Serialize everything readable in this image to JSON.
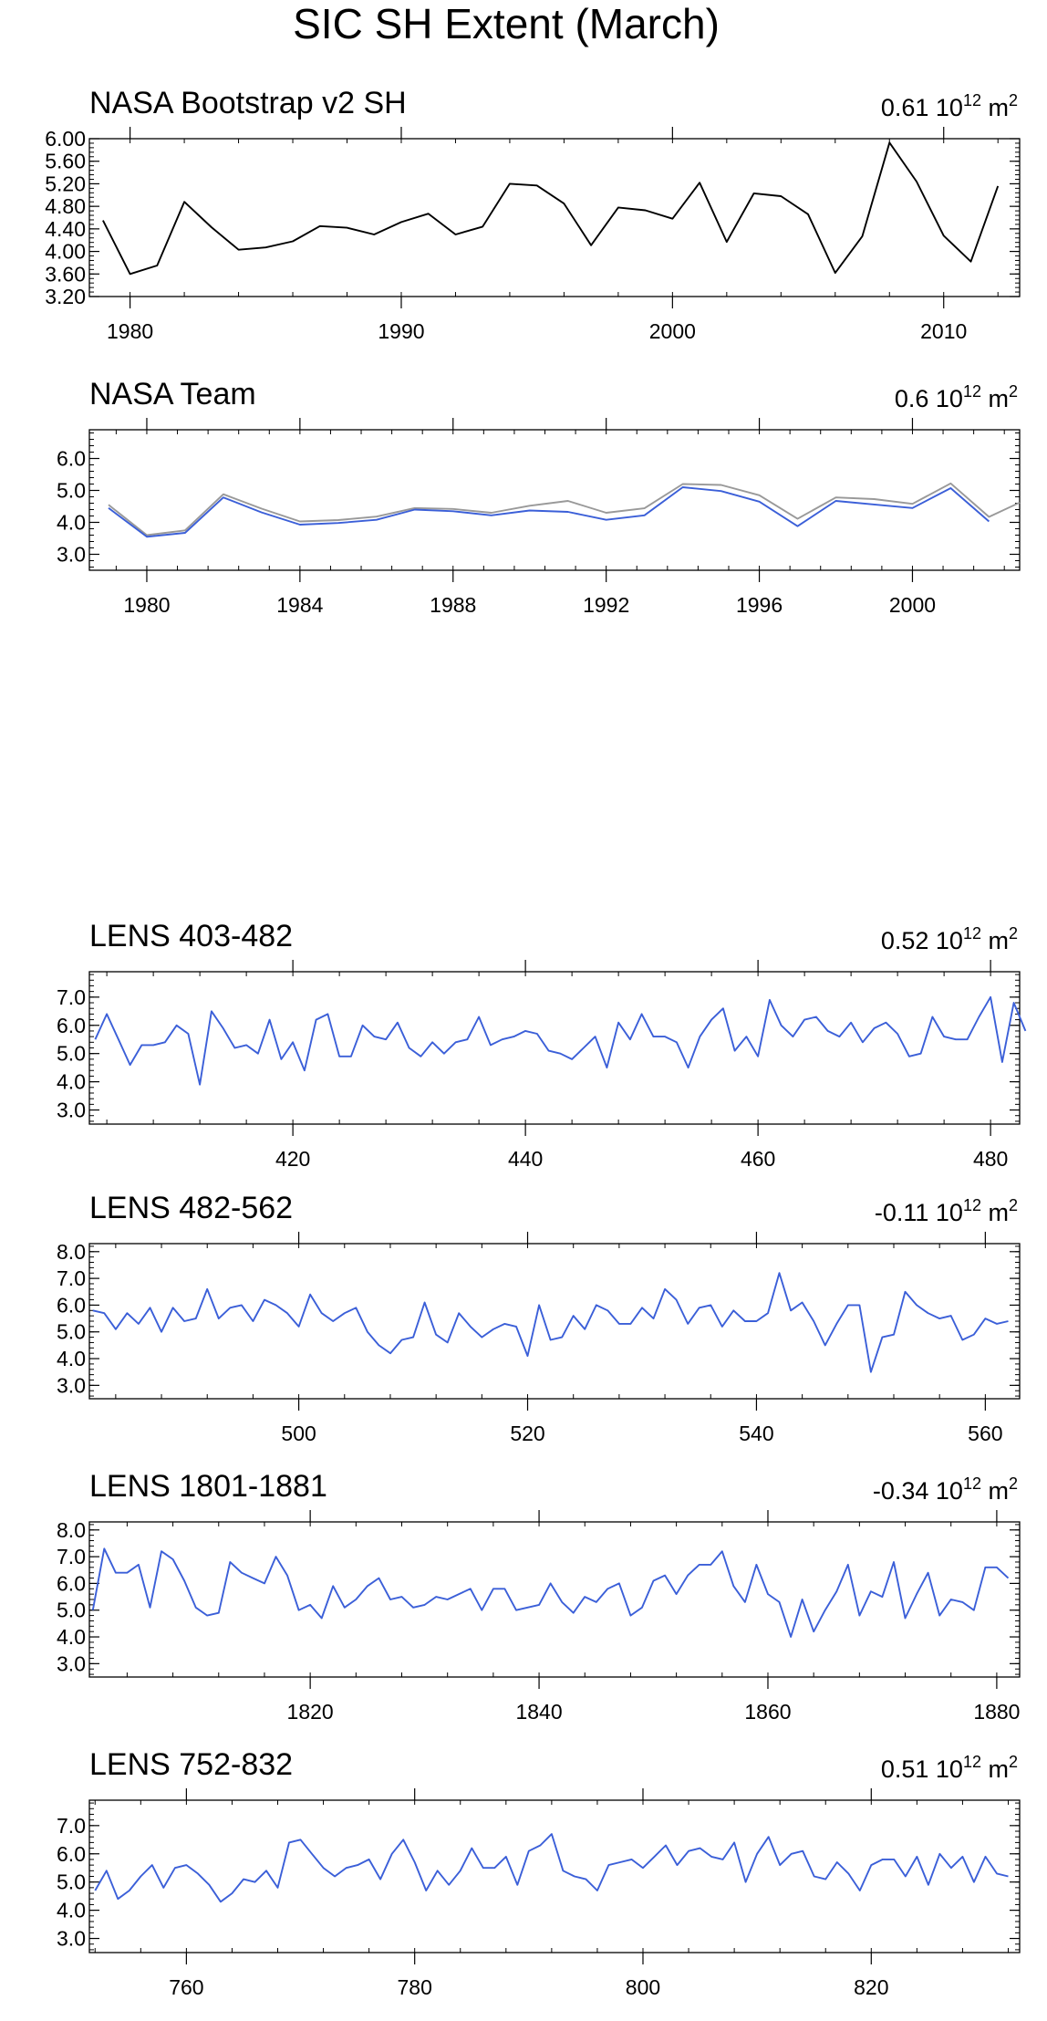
{
  "figure_title": "SIC SH Extent (March)",
  "chart_data": [
    {
      "type": "line",
      "title": "NASA Bootstrap v2 SH",
      "stat_value": "0.61",
      "stat_unit_base": "10",
      "stat_unit_exp": "12",
      "stat_unit_label": "m",
      "stat_unit_label_exp": "2",
      "xlim": [
        1978.5,
        2012.8
      ],
      "ylim": [
        3.2,
        6.0
      ],
      "xticks": [
        1980,
        1990,
        2000,
        2010
      ],
      "xtick_labels": [
        "1980",
        "1990",
        "2000",
        "2010"
      ],
      "yticks": [
        3.2,
        3.6,
        4.0,
        4.4,
        4.8,
        5.2,
        5.6,
        6.0
      ],
      "ytick_labels": [
        "3.20",
        "3.60",
        "4.00",
        "4.40",
        "4.80",
        "5.20",
        "5.60",
        "6.00"
      ],
      "series": [
        {
          "color": "#000000",
          "x": [
            1979,
            1980,
            1981,
            1982,
            1983,
            1984,
            1985,
            1986,
            1987,
            1988,
            1989,
            1990,
            1991,
            1992,
            1993,
            1994,
            1995,
            1996,
            1997,
            1998,
            1999,
            2000,
            2001,
            2002,
            2003,
            2004,
            2005,
            2006,
            2007,
            2008,
            2009,
            2010,
            2011,
            2012
          ],
          "values": [
            4.55,
            3.6,
            3.75,
            4.88,
            4.43,
            4.03,
            4.07,
            4.18,
            4.45,
            4.42,
            4.3,
            4.52,
            4.67,
            4.3,
            4.44,
            5.2,
            5.17,
            4.85,
            4.11,
            4.78,
            4.73,
            4.58,
            5.22,
            4.17,
            5.03,
            4.98,
            4.66,
            3.62,
            4.27,
            5.93,
            5.24,
            4.28,
            3.82,
            5.16
          ]
        }
      ]
    },
    {
      "type": "line",
      "title": "NASA Team",
      "stat_value": "0.6",
      "stat_unit_base": "10",
      "stat_unit_exp": "12",
      "stat_unit_label": "m",
      "stat_unit_label_exp": "2",
      "xlim": [
        1978.5,
        2002.8
      ],
      "ylim": [
        2.5,
        6.9
      ],
      "xticks": [
        1980,
        1984,
        1988,
        1992,
        1996,
        2000
      ],
      "xtick_labels": [
        "1980",
        "1984",
        "1988",
        "1992",
        "1996",
        "2000"
      ],
      "yticks": [
        3.0,
        4.0,
        5.0,
        6.0
      ],
      "ytick_labels": [
        "3.0",
        "4.0",
        "5.0",
        "6.0"
      ],
      "series": [
        {
          "color": "#999999",
          "x": [
            1979,
            1980,
            1981,
            1982,
            1983,
            1984,
            1985,
            1986,
            1987,
            1988,
            1989,
            1990,
            1991,
            1992,
            1993,
            1994,
            1995,
            1996,
            1997,
            1998,
            1999,
            2000,
            2001,
            2002,
            2002.8
          ],
          "values": [
            4.55,
            3.6,
            3.75,
            4.88,
            4.43,
            4.03,
            4.07,
            4.18,
            4.45,
            4.42,
            4.3,
            4.52,
            4.67,
            4.3,
            4.44,
            5.2,
            5.17,
            4.85,
            4.11,
            4.78,
            4.73,
            4.58,
            5.22,
            4.17,
            4.62
          ]
        },
        {
          "color": "#3b5fd8",
          "x": [
            1979,
            1980,
            1981,
            1982,
            1983,
            1984,
            1985,
            1986,
            1987,
            1988,
            1989,
            1990,
            1991,
            1992,
            1993,
            1994,
            1995,
            1996,
            1997,
            1998,
            1999,
            2000,
            2001,
            2002
          ],
          "values": [
            4.45,
            3.55,
            3.67,
            4.78,
            4.31,
            3.93,
            3.98,
            4.08,
            4.4,
            4.35,
            4.22,
            4.37,
            4.33,
            4.08,
            4.22,
            5.1,
            4.98,
            4.65,
            3.88,
            4.67,
            4.56,
            4.45,
            5.07,
            4.03
          ]
        }
      ]
    },
    {
      "type": "line",
      "title": "LENS 403-482",
      "stat_value": "0.52",
      "stat_unit_base": "10",
      "stat_unit_exp": "12",
      "stat_unit_label": "m",
      "stat_unit_label_exp": "2",
      "xlim": [
        402.5,
        482.5
      ],
      "ylim": [
        2.5,
        7.9
      ],
      "xticks": [
        420,
        440,
        460,
        480
      ],
      "xtick_labels": [
        "420",
        "440",
        "460",
        "480"
      ],
      "yticks": [
        3.0,
        4.0,
        5.0,
        6.0,
        7.0
      ],
      "ytick_labels": [
        "3.0",
        "4.0",
        "5.0",
        "6.0",
        "7.0"
      ],
      "series": [
        {
          "color": "#3b5fd8",
          "x0": 403,
          "dx": 1,
          "values": [
            5.5,
            6.4,
            5.5,
            4.6,
            5.3,
            5.3,
            5.4,
            6.0,
            5.7,
            3.9,
            6.5,
            5.9,
            5.2,
            5.3,
            5.0,
            6.2,
            4.8,
            5.4,
            4.4,
            6.2,
            6.4,
            4.9,
            4.9,
            6.0,
            5.6,
            5.5,
            6.1,
            5.2,
            4.9,
            5.4,
            5.0,
            5.4,
            5.5,
            6.3,
            5.3,
            5.5,
            5.6,
            5.8,
            5.7,
            5.1,
            5.0,
            4.8,
            5.2,
            5.6,
            4.5,
            6.1,
            5.5,
            6.4,
            5.6,
            5.6,
            5.4,
            4.5,
            5.6,
            6.2,
            6.6,
            5.1,
            5.6,
            4.9,
            6.9,
            6.0,
            5.6,
            6.2,
            6.3,
            5.8,
            5.6,
            6.1,
            5.4,
            5.9,
            6.1,
            5.7,
            4.9,
            5.0,
            6.3,
            5.6,
            5.5,
            5.5,
            6.3,
            7.0,
            4.7,
            6.8,
            5.8
          ]
        }
      ]
    },
    {
      "type": "line",
      "title": "LENS 482-562",
      "stat_value": "-0.11",
      "stat_unit_base": "10",
      "stat_unit_exp": "12",
      "stat_unit_label": "m",
      "stat_unit_label_exp": "2",
      "xlim": [
        481.7,
        563.0
      ],
      "ylim": [
        2.5,
        8.3
      ],
      "xticks": [
        500,
        520,
        540,
        560
      ],
      "xtick_labels": [
        "500",
        "520",
        "540",
        "560"
      ],
      "yticks": [
        3.0,
        4.0,
        5.0,
        6.0,
        7.0,
        8.0
      ],
      "ytick_labels": [
        "3.0",
        "4.0",
        "5.0",
        "6.0",
        "7.0",
        "8.0"
      ],
      "series": [
        {
          "color": "#3b5fd8",
          "x0": 482,
          "dx": 1,
          "values": [
            5.8,
            5.7,
            5.1,
            5.7,
            5.3,
            5.9,
            5.0,
            5.9,
            5.4,
            5.5,
            6.6,
            5.5,
            5.9,
            6.0,
            5.4,
            6.2,
            6.0,
            5.7,
            5.2,
            6.4,
            5.7,
            5.4,
            5.7,
            5.9,
            5.0,
            4.5,
            4.2,
            4.7,
            4.8,
            6.1,
            4.9,
            4.6,
            5.7,
            5.2,
            4.8,
            5.1,
            5.3,
            5.2,
            4.1,
            6.0,
            4.7,
            4.8,
            5.6,
            5.1,
            6.0,
            5.8,
            5.3,
            5.3,
            5.9,
            5.5,
            6.6,
            6.2,
            5.3,
            5.9,
            6.0,
            5.2,
            5.8,
            5.4,
            5.4,
            5.7,
            7.2,
            5.8,
            6.1,
            5.4,
            4.5,
            5.3,
            6.0,
            6.0,
            3.5,
            4.8,
            4.9,
            6.5,
            6.0,
            5.7,
            5.5,
            5.6,
            4.7,
            4.9,
            5.5,
            5.3,
            5.4
          ]
        }
      ]
    },
    {
      "type": "line",
      "title": "LENS 1801-1881",
      "stat_value": "-0.34",
      "stat_unit_base": "10",
      "stat_unit_exp": "12",
      "stat_unit_label": "m",
      "stat_unit_label_exp": "2",
      "xlim": [
        1800.7,
        1882.0
      ],
      "ylim": [
        2.5,
        8.3
      ],
      "xticks": [
        1820,
        1840,
        1860,
        1880
      ],
      "xtick_labels": [
        "1820",
        "1840",
        "1860",
        "1880"
      ],
      "yticks": [
        3.0,
        4.0,
        5.0,
        6.0,
        7.0,
        8.0
      ],
      "ytick_labels": [
        "3.0",
        "4.0",
        "5.0",
        "6.0",
        "7.0",
        "8.0"
      ],
      "series": [
        {
          "color": "#3b5fd8",
          "x0": 1801,
          "dx": 1,
          "values": [
            5.0,
            7.3,
            6.4,
            6.4,
            6.7,
            5.1,
            7.2,
            6.9,
            6.1,
            5.1,
            4.8,
            4.9,
            6.8,
            6.4,
            6.2,
            6.0,
            7.0,
            6.3,
            5.0,
            5.2,
            4.7,
            5.9,
            5.1,
            5.4,
            5.9,
            6.2,
            5.4,
            5.5,
            5.1,
            5.2,
            5.5,
            5.4,
            5.6,
            5.8,
            5.0,
            5.8,
            5.8,
            5.0,
            5.1,
            5.2,
            6.0,
            5.3,
            4.9,
            5.5,
            5.3,
            5.8,
            6.0,
            4.8,
            5.1,
            6.1,
            6.3,
            5.6,
            6.3,
            6.7,
            6.7,
            7.2,
            5.9,
            5.3,
            6.7,
            5.6,
            5.3,
            4.0,
            5.4,
            4.2,
            5.0,
            5.7,
            6.7,
            4.8,
            5.7,
            5.5,
            6.8,
            4.7,
            5.6,
            6.4,
            4.8,
            5.4,
            5.3,
            5.0,
            6.6,
            6.6,
            6.2
          ]
        }
      ]
    },
    {
      "type": "line",
      "title": "LENS 752-832",
      "stat_value": "0.51",
      "stat_unit_base": "10",
      "stat_unit_exp": "12",
      "stat_unit_label": "m",
      "stat_unit_label_exp": "2",
      "xlim": [
        751.5,
        833.0
      ],
      "ylim": [
        2.5,
        7.9
      ],
      "xticks": [
        760,
        780,
        800,
        820
      ],
      "xtick_labels": [
        "760",
        "780",
        "800",
        "820"
      ],
      "yticks": [
        3.0,
        4.0,
        5.0,
        6.0,
        7.0
      ],
      "ytick_labels": [
        "3.0",
        "4.0",
        "5.0",
        "6.0",
        "7.0"
      ],
      "series": [
        {
          "color": "#3b5fd8",
          "x0": 752,
          "dx": 1,
          "values": [
            4.7,
            5.4,
            4.4,
            4.7,
            5.2,
            5.6,
            4.8,
            5.5,
            5.6,
            5.3,
            4.9,
            4.3,
            4.6,
            5.1,
            5.0,
            5.4,
            4.8,
            6.4,
            6.5,
            6.0,
            5.5,
            5.2,
            5.5,
            5.6,
            5.8,
            5.1,
            6.0,
            6.5,
            5.7,
            4.7,
            5.4,
            4.9,
            5.4,
            6.2,
            5.5,
            5.5,
            5.9,
            4.9,
            6.1,
            6.3,
            6.7,
            5.4,
            5.2,
            5.1,
            4.7,
            5.6,
            5.7,
            5.8,
            5.5,
            5.9,
            6.3,
            5.6,
            6.1,
            6.2,
            5.9,
            5.8,
            6.4,
            5.0,
            6.0,
            6.6,
            5.6,
            6.0,
            6.1,
            5.2,
            5.1,
            5.7,
            5.3,
            4.7,
            5.6,
            5.8,
            5.8,
            5.2,
            5.9,
            4.9,
            6.0,
            5.5,
            5.9,
            5.0,
            5.9,
            5.3,
            5.2
          ]
        }
      ]
    }
  ]
}
